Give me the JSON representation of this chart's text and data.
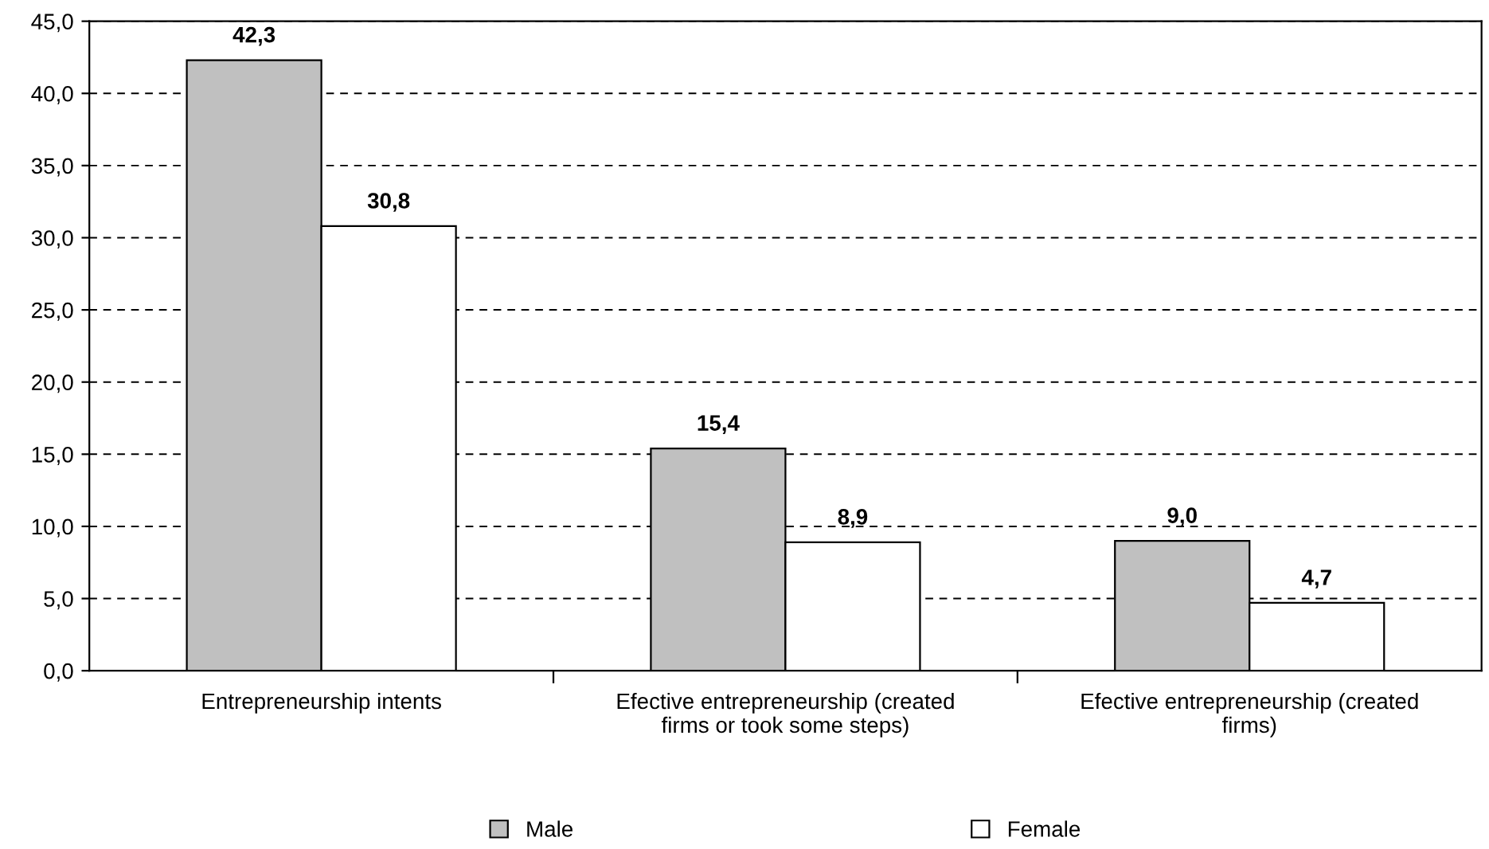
{
  "chart_data": {
    "type": "bar",
    "categories": [
      "Entrepreneurship intents",
      "Efective entrepreneurship (created firms or took some steps)",
      "Efective entrepreneurship (created firms)"
    ],
    "series": [
      {
        "name": "Male",
        "color": "#c0c0c0",
        "values": [
          42.3,
          15.4,
          9.0
        ],
        "value_labels": [
          "42,3",
          "15,4",
          "9,0"
        ]
      },
      {
        "name": "Female",
        "color": "#ffffff",
        "values": [
          30.8,
          8.9,
          4.7
        ],
        "value_labels": [
          "30,8",
          "8,9",
          "4,7"
        ]
      }
    ],
    "ylim": [
      0,
      45
    ],
    "yticks": [
      {
        "value": 0,
        "label": "0,0"
      },
      {
        "value": 5,
        "label": "5,0"
      },
      {
        "value": 10,
        "label": "10,0"
      },
      {
        "value": 15,
        "label": "15,0"
      },
      {
        "value": 20,
        "label": "20,0"
      },
      {
        "value": 25,
        "label": "25,0"
      },
      {
        "value": 30,
        "label": "30,0"
      },
      {
        "value": 35,
        "label": "35,0"
      },
      {
        "value": 40,
        "label": "40,0"
      },
      {
        "value": 45,
        "label": "45,0"
      }
    ],
    "grid": "y",
    "legend": "bottom"
  }
}
